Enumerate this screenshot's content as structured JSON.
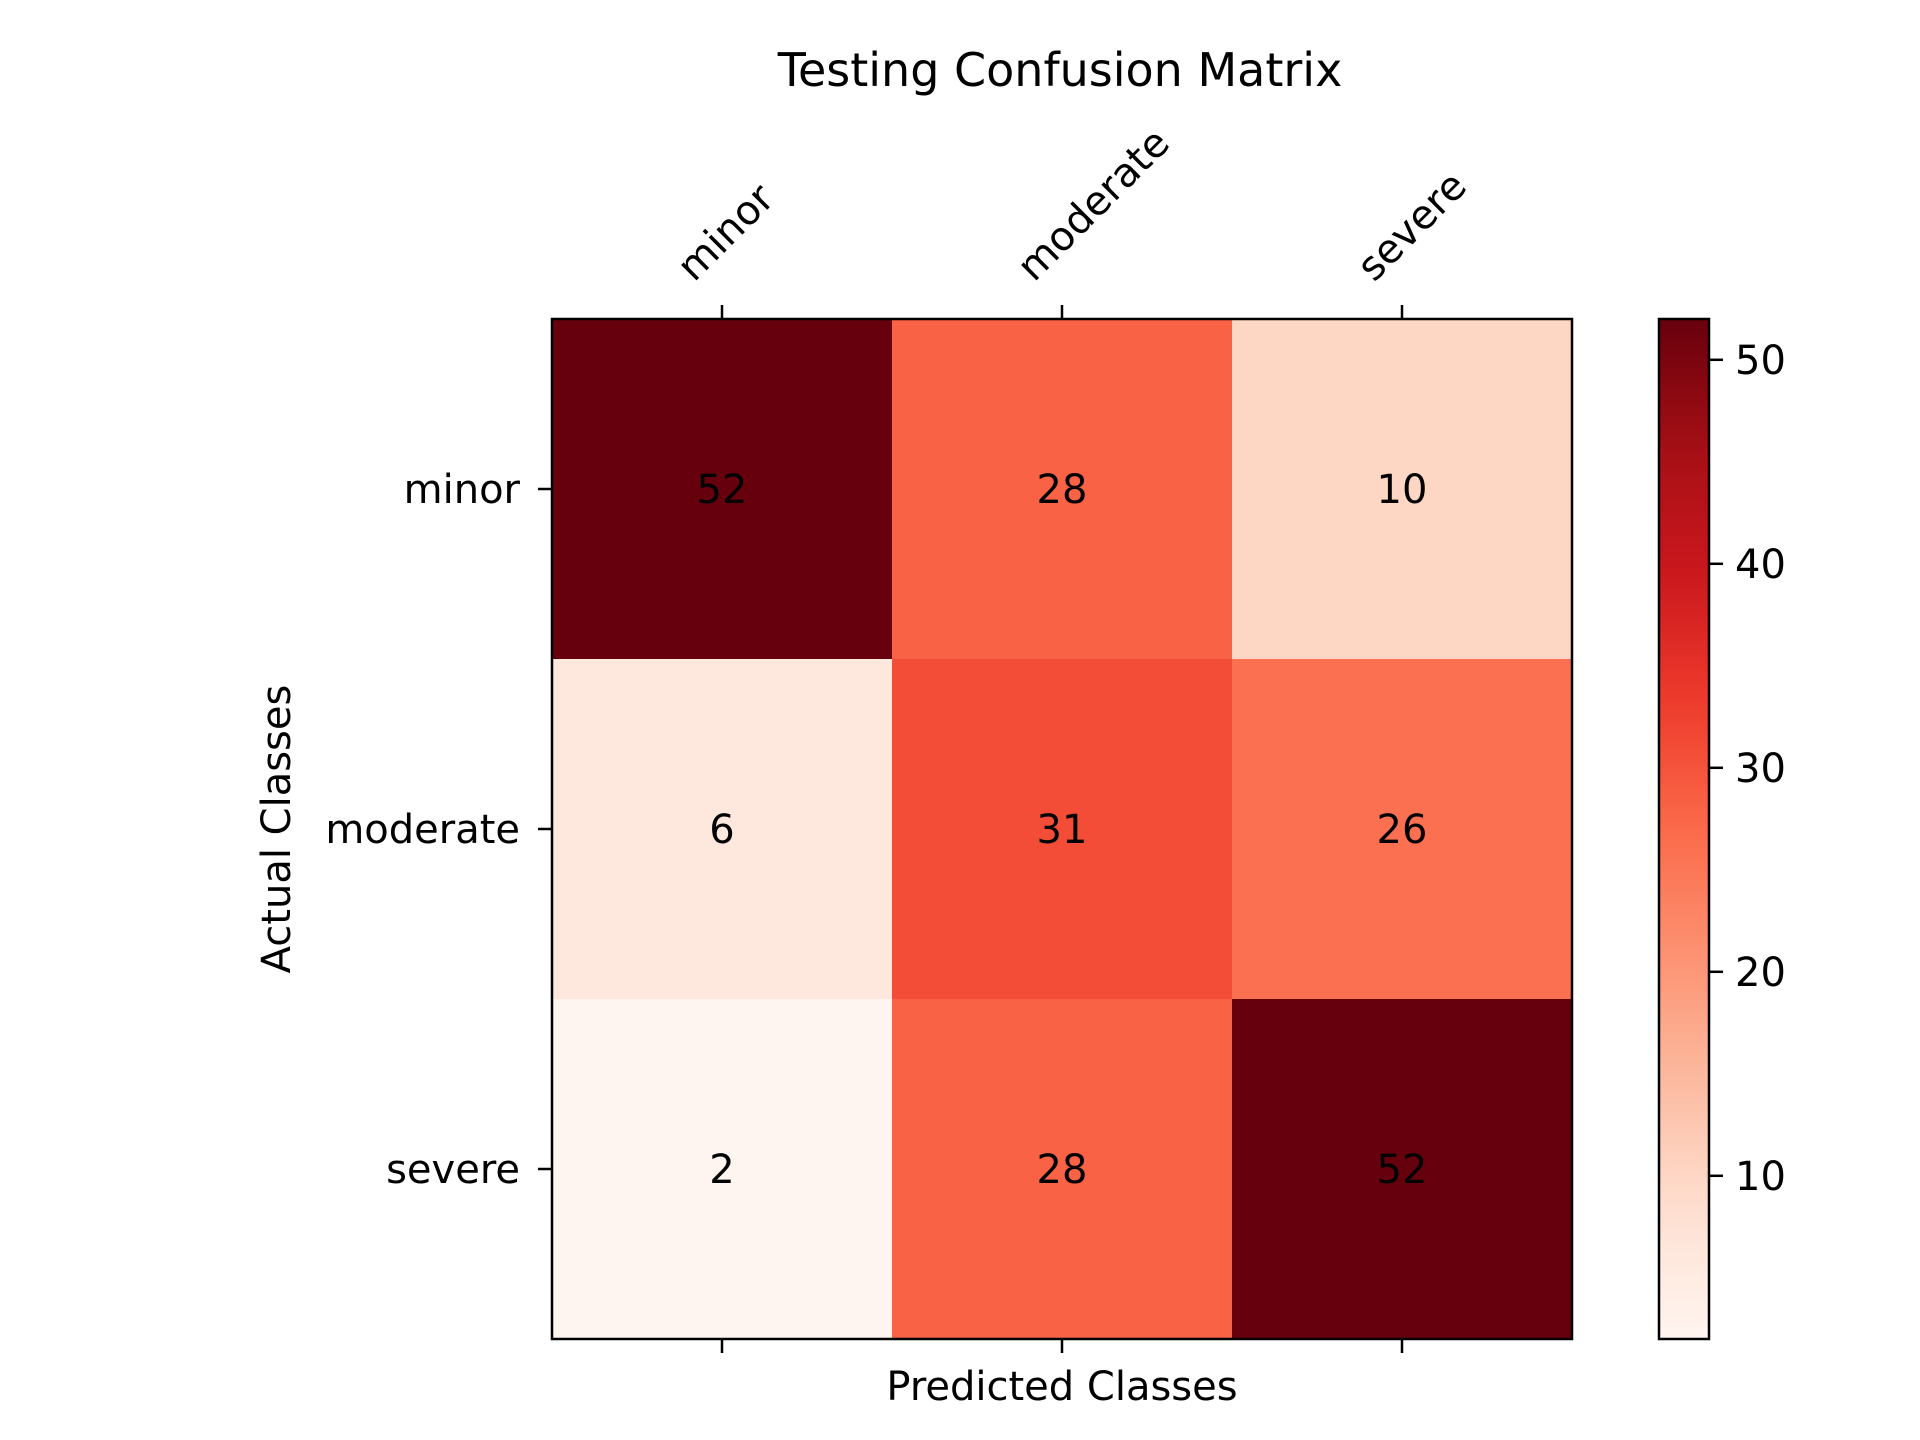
{
  "chart_data": {
    "type": "heatmap",
    "title": "Testing Confusion Matrix",
    "xlabel": "Predicted Classes",
    "ylabel": "Actual Classes",
    "x_categories": [
      "minor",
      "moderate",
      "severe"
    ],
    "y_categories": [
      "minor",
      "moderate",
      "severe"
    ],
    "values": [
      [
        52,
        28,
        10
      ],
      [
        6,
        31,
        26
      ],
      [
        2,
        28,
        52
      ]
    ],
    "colormap": "Reds",
    "vmin": 2,
    "vmax": 52,
    "colorbar_ticks": [
      10,
      20,
      30,
      40,
      50
    ],
    "x_tick_position": "top",
    "grid": false
  }
}
